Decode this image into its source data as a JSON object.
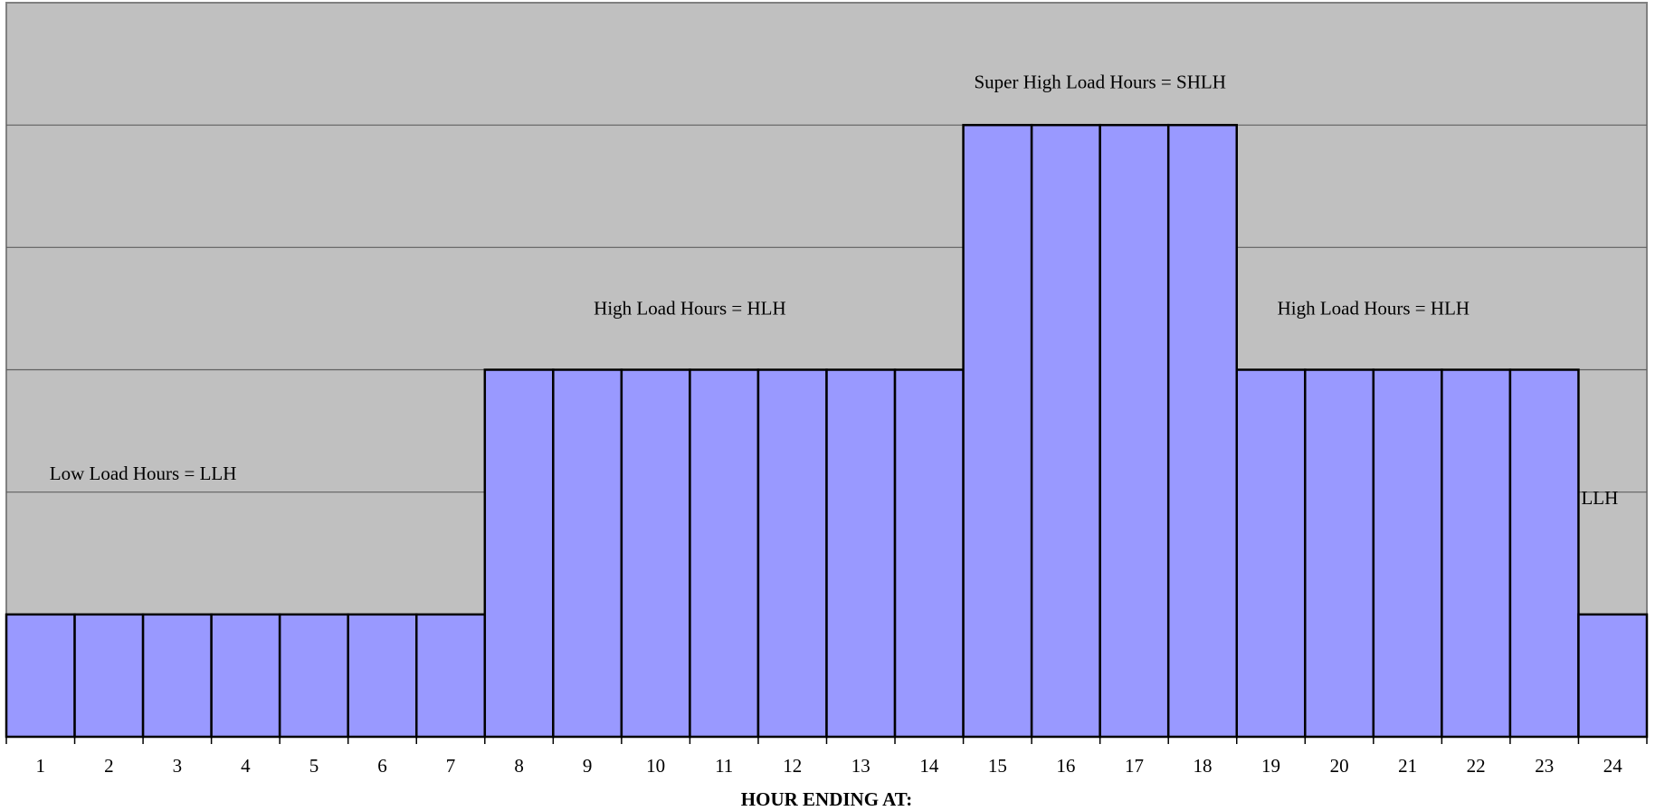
{
  "chart_data": {
    "type": "bar",
    "categories": [
      "1",
      "2",
      "3",
      "4",
      "5",
      "6",
      "7",
      "8",
      "9",
      "10",
      "11",
      "12",
      "13",
      "14",
      "15",
      "16",
      "17",
      "18",
      "19",
      "20",
      "21",
      "22",
      "23",
      "24"
    ],
    "values": [
      1,
      1,
      1,
      1,
      1,
      1,
      1,
      3,
      3,
      3,
      3,
      3,
      3,
      3,
      5,
      5,
      5,
      5,
      3,
      3,
      3,
      3,
      3,
      1
    ],
    "xlabel": "HOUR ENDING AT:",
    "ylabel": "",
    "ylim": [
      0,
      6
    ],
    "grid": true,
    "annotations": [
      {
        "text": "Low Load Hours = LLH",
        "x": 2.5,
        "y": 2.1
      },
      {
        "text": "High Load Hours = HLH",
        "x": 10.5,
        "y": 3.45
      },
      {
        "text": "Super High Load Hours = SHLH",
        "x": 16.5,
        "y": 5.3
      },
      {
        "text": "High Load Hours = HLH",
        "x": 20.5,
        "y": 3.45
      },
      {
        "text": "LLH",
        "x": 24,
        "y": 1.9
      }
    ],
    "colors": {
      "plot_background": "#c0c0c0",
      "bar_fill": "#9999ff",
      "bar_stroke": "#000000",
      "grid": "#606060"
    }
  }
}
